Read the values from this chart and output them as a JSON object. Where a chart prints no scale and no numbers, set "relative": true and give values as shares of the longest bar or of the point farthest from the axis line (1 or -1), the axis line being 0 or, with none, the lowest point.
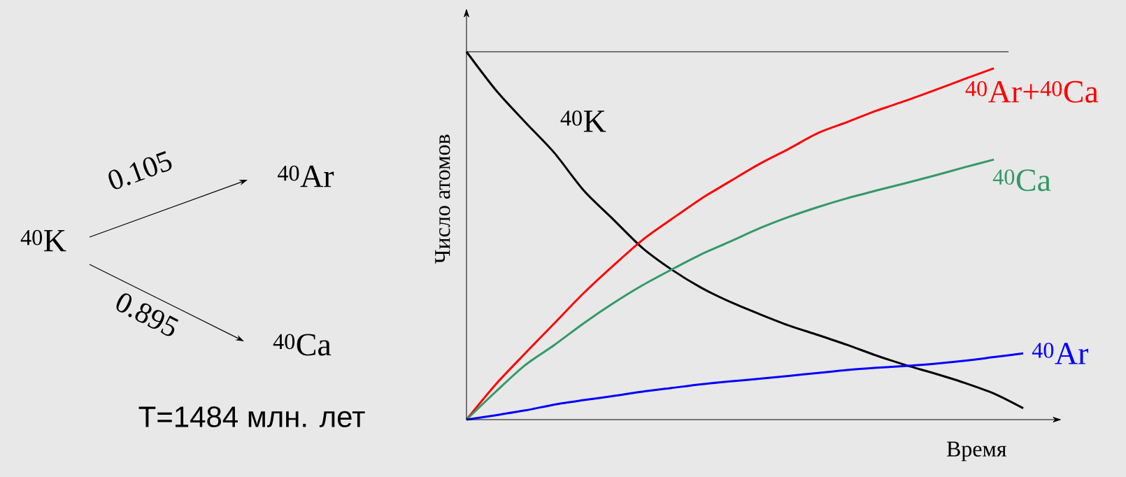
{
  "chart_data": {
    "type": "line",
    "relative": true,
    "line_style": "solid",
    "xlabel": "Время",
    "ylabel": "Число атомов",
    "categories": [
      null,
      null,
      null,
      null,
      null,
      null,
      null,
      null,
      null,
      null,
      null,
      null,
      null,
      null,
      null,
      null,
      null,
      null,
      null,
      null
    ],
    "series": [
      {
        "name": "$^{40}$K",
        "color": "#000000",
        "values": [
          1.0,
          0.896,
          0.809,
          0.725,
          0.623,
          0.545,
          0.467,
          0.408,
          0.359,
          0.32,
          0.287,
          0.256,
          0.23,
          0.203,
          0.174,
          0.148,
          0.125,
          0.1,
          0.071,
          0.031
        ]
      },
      {
        "name": "$^{40}$Ar+$^{40}$Ca",
        "color": "#ff0000",
        "values": [
          0,
          0.096,
          0.18,
          0.262,
          0.344,
          0.418,
          0.488,
          0.545,
          0.6,
          0.648,
          0.695,
          0.736,
          0.779,
          0.809,
          0.84,
          0.867,
          0.896,
          0.926,
          0.955,
          null
        ]
      },
      {
        "name": "$^{40}$Ca",
        "color": "#339966",
        "values": [
          0,
          0.076,
          0.148,
          0.203,
          0.262,
          0.316,
          0.365,
          0.408,
          0.449,
          0.484,
          0.52,
          0.551,
          0.578,
          0.602,
          0.623,
          0.643,
          0.664,
          0.686,
          0.707,
          null
        ]
      },
      {
        "name": "$^{40}$Ar",
        "color": "#0000ff",
        "values": [
          0,
          0.012,
          0.025,
          0.041,
          0.053,
          0.064,
          0.076,
          0.086,
          0.096,
          0.104,
          0.111,
          0.119,
          0.127,
          0.135,
          0.141,
          0.146,
          0.152,
          0.16,
          0.17,
          0.18
        ]
      }
    ],
    "ref_lines": [
      {
        "axis": "y",
        "value": 1,
        "color": "#000000"
      }
    ],
    "annotations": [
      "$^{40}$K",
      "0.105",
      "$^{40}$Ar",
      "0.895",
      "$^{40}$Ca",
      "T=1484 млн. лет"
    ]
  }
}
